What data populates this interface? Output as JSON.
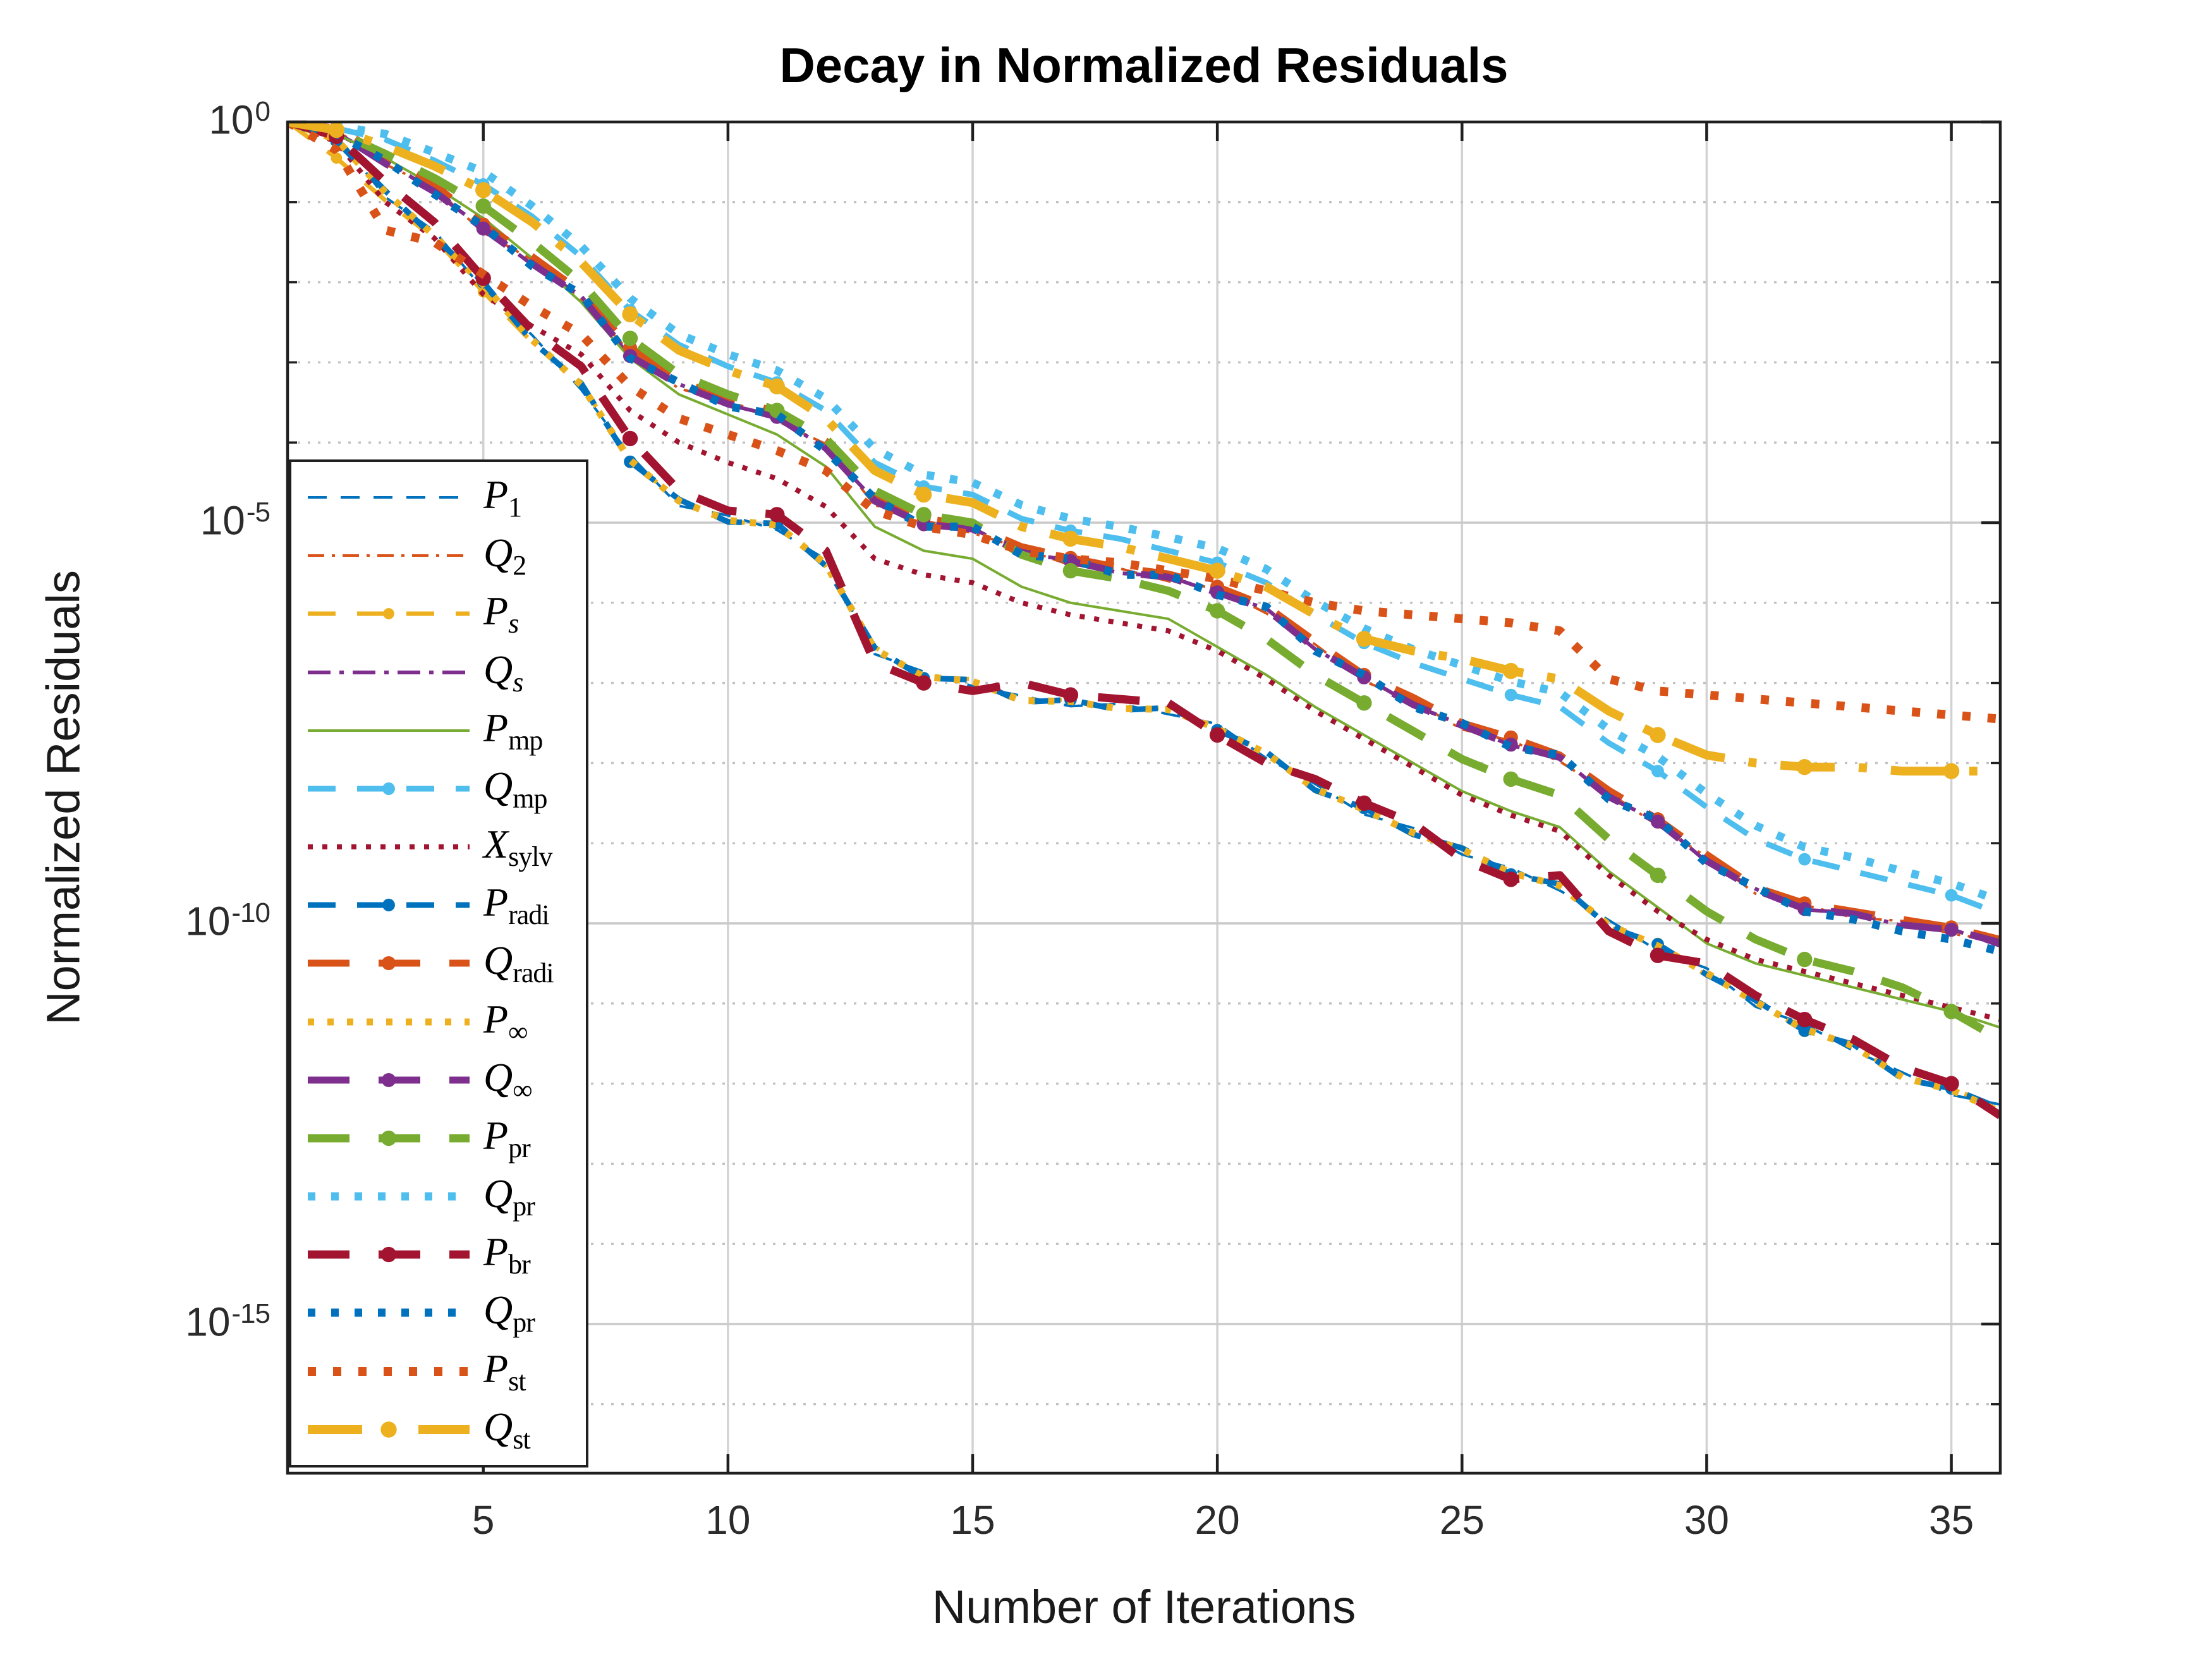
{
  "chart_data": {
    "type": "line",
    "title": "Decay in Normalized Residuals",
    "xlabel": "Number of Iterations",
    "ylabel": "Normalized Residuals",
    "grid": "on",
    "legend_position": "inside-lower-left",
    "x_axis": {
      "min": 1,
      "max": 36,
      "major_ticks": [
        5,
        10,
        15,
        20,
        25,
        30,
        35
      ],
      "tick_labels": [
        "5",
        "10",
        "15",
        "20",
        "25",
        "30",
        "35"
      ]
    },
    "y_axis": {
      "scale": "log10",
      "top_exponent": 0,
      "bottom_exponent": -16.86,
      "major_tick_exponents": [
        0,
        -5,
        -10,
        -15
      ],
      "major_tick_labels": [
        "10^0",
        "10^-5",
        "10^-10",
        "10^-15"
      ],
      "minor_grid_exponents": [
        -1,
        -2,
        -3,
        -4,
        -6,
        -7,
        -8,
        -9,
        -11,
        -12,
        -13,
        -14,
        -16
      ]
    },
    "x": [
      1,
      2,
      3,
      4,
      5,
      6,
      7,
      8,
      9,
      10,
      11,
      12,
      13,
      14,
      15,
      16,
      17,
      18,
      19,
      20,
      21,
      22,
      23,
      24,
      25,
      26,
      27,
      28,
      29,
      30,
      31,
      32,
      33,
      34,
      35,
      36
    ],
    "series": [
      {
        "name": "P_1",
        "label_base": "P",
        "label_sub": "1",
        "sub_italic": false,
        "color": "#0072BD",
        "lw": 4,
        "style": "dashed-sm",
        "marker": false,
        "log10_values": [
          0,
          -0.16,
          -0.94,
          -1.36,
          -2.09,
          -2.66,
          -3.34,
          -4.16,
          -4.79,
          -4.91,
          -5.09,
          -5.46,
          -6.64,
          -6.86,
          -7.04,
          -7.16,
          -7.29,
          -7.26,
          -7.39,
          -7.51,
          -7.94,
          -8.26,
          -8.64,
          -8.81,
          -9.14,
          -9.31,
          -9.59,
          -9.96,
          -10.34,
          -10.56,
          -11.04,
          -11.26,
          -11.59,
          -11.86,
          -12.14,
          -12.26
        ]
      },
      {
        "name": "Q_2",
        "label_base": "Q",
        "label_sub": "2",
        "sub_italic": false,
        "color": "#D95319",
        "lw": 4,
        "style": "dashdot-sm",
        "marker": false,
        "log10_values": [
          0,
          -0.1,
          -0.53,
          -0.82,
          -1.38,
          -1.72,
          -2.23,
          -2.87,
          -3.33,
          -3.47,
          -3.73,
          -4.02,
          -4.78,
          -4.97,
          -5.13,
          -5.32,
          -5.53,
          -5.57,
          -5.73,
          -5.82,
          -6.13,
          -6.52,
          -6.98,
          -7.22,
          -7.58,
          -7.72,
          -7.98,
          -8.37,
          -8.78,
          -9.17,
          -9.63,
          -9.77,
          -9.93,
          -9.97,
          -10.13,
          -10.22
        ]
      },
      {
        "name": "P_s",
        "label_base": "P",
        "label_sub": "s",
        "sub_italic": true,
        "color": "#EDB120",
        "lw": 7,
        "style": "dashed-md",
        "marker": true,
        "log10_values": [
          0,
          -0.45,
          -0.98,
          -1.45,
          -2.12,
          -2.75,
          -3.25,
          -4.25,
          -4.7,
          -5.0,
          -5.0,
          -5.55,
          -6.55,
          -6.95,
          -6.95,
          -7.25,
          -7.2,
          -7.35,
          -7.3,
          -7.6,
          -7.85,
          -8.35,
          -8.55,
          -8.9,
          -9.05,
          -9.4,
          -9.5,
          -10.05,
          -10.25,
          -10.65,
          -10.95,
          -11.35,
          -11.5,
          -11.95,
          -12.05,
          -12.33
        ]
      },
      {
        "name": "Q_s",
        "label_base": "Q",
        "label_sub": "s",
        "sub_italic": true,
        "color": "#7E2F8E",
        "lw": 6,
        "style": "dashdot-md",
        "marker": false,
        "log10_values": [
          0,
          -0.14,
          -0.47,
          -0.88,
          -1.32,
          -1.78,
          -2.17,
          -2.93,
          -3.27,
          -3.53,
          -3.67,
          -4.08,
          -4.72,
          -5.03,
          -5.07,
          -5.38,
          -5.47,
          -5.63,
          -5.67,
          -5.88,
          -6.07,
          -6.58,
          -6.92,
          -7.28,
          -7.52,
          -7.78,
          -7.92,
          -8.43,
          -8.72,
          -9.23,
          -9.57,
          -9.83,
          -9.87,
          -10.03,
          -10.07,
          -10.28
        ]
      },
      {
        "name": "P_mp",
        "label_base": "P",
        "label_sub": "mp",
        "sub_italic": false,
        "color": "#77AC30",
        "lw": 4,
        "style": "solid",
        "marker": false,
        "log10_values": [
          0,
          -0.15,
          -0.45,
          -0.8,
          -1.2,
          -1.7,
          -2.25,
          -2.95,
          -3.4,
          -3.65,
          -3.9,
          -4.3,
          -5.05,
          -5.35,
          -5.45,
          -5.8,
          -6.0,
          -6.1,
          -6.2,
          -6.55,
          -6.9,
          -7.3,
          -7.65,
          -8.0,
          -8.35,
          -8.6,
          -8.8,
          -9.35,
          -9.8,
          -10.25,
          -10.5,
          -10.65,
          -10.8,
          -10.95,
          -11.1,
          -11.3
        ]
      },
      {
        "name": "Q_mp",
        "label_base": "Q",
        "label_sub": "mp",
        "sub_italic": false,
        "color": "#4DBEEE",
        "lw": 9,
        "style": "dashed-md",
        "marker": true,
        "log10_values": [
          0,
          -0.08,
          -0.22,
          -0.48,
          -0.78,
          -1.18,
          -1.68,
          -2.35,
          -2.78,
          -3.05,
          -3.25,
          -3.6,
          -4.25,
          -4.55,
          -4.65,
          -4.95,
          -5.1,
          -5.2,
          -5.35,
          -5.5,
          -5.75,
          -6.15,
          -6.5,
          -6.75,
          -6.95,
          -7.15,
          -7.3,
          -7.75,
          -8.1,
          -8.55,
          -8.95,
          -9.2,
          -9.35,
          -9.5,
          -9.65,
          -9.88
        ]
      },
      {
        "name": "X_sylv",
        "label_base": "X",
        "label_sub": "sylv",
        "sub_italic": false,
        "color": "#A2142F",
        "lw": 8,
        "style": "dotted",
        "marker": false,
        "log10_values": [
          0,
          -0.25,
          -1.0,
          -1.45,
          -2.15,
          -2.55,
          -2.9,
          -3.6,
          -4.0,
          -4.25,
          -4.45,
          -4.8,
          -5.45,
          -5.65,
          -5.75,
          -6.0,
          -6.15,
          -6.25,
          -6.35,
          -6.6,
          -6.95,
          -7.35,
          -7.7,
          -8.05,
          -8.4,
          -8.65,
          -8.85,
          -9.4,
          -9.85,
          -10.2,
          -10.45,
          -10.6,
          -10.75,
          -10.9,
          -11.05,
          -11.2
        ]
      },
      {
        "name": "P_radi",
        "label_base": "P",
        "label_sub": "radi",
        "sub_italic": false,
        "color": "#0072BD",
        "lw": 9,
        "style": "dashed-md",
        "marker": true,
        "log10_values": [
          0,
          -0.24,
          -0.86,
          -1.44,
          -2.0,
          -2.74,
          -3.26,
          -4.24,
          -4.71,
          -4.99,
          -5.01,
          -5.54,
          -6.56,
          -6.94,
          -6.96,
          -7.24,
          -7.21,
          -7.34,
          -7.31,
          -7.59,
          -7.86,
          -8.34,
          -8.56,
          -8.89,
          -9.06,
          -9.39,
          -9.51,
          -10.04,
          -10.26,
          -10.64,
          -10.96,
          -11.34,
          -11.51,
          -11.94,
          -12.06,
          -12.31
        ]
      },
      {
        "name": "Q_radi",
        "label_base": "Q",
        "label_sub": "radi",
        "sub_italic": false,
        "color": "#D95319",
        "lw": 11,
        "style": "dashed-lg",
        "marker": true,
        "log10_values": [
          0,
          -0.08,
          -0.42,
          -0.78,
          -1.28,
          -1.68,
          -2.12,
          -2.82,
          -3.24,
          -3.44,
          -3.62,
          -3.98,
          -4.68,
          -4.94,
          -5.04,
          -5.3,
          -5.44,
          -5.56,
          -5.64,
          -5.8,
          -6.04,
          -6.48,
          -6.9,
          -7.18,
          -7.5,
          -7.68,
          -7.9,
          -8.34,
          -8.7,
          -9.14,
          -9.55,
          -9.75,
          -9.85,
          -9.95,
          -10.05,
          -10.2
        ]
      },
      {
        "name": "P_inf",
        "label_base": "P",
        "label_sub": "∞",
        "sub_italic": false,
        "color": "#EDB120",
        "lw": 11,
        "style": "dotted",
        "marker": false,
        "log10_values": [
          0,
          -0.22,
          -0.88,
          -1.42,
          -2.03,
          -2.72,
          -3.28,
          -4.22,
          -4.73,
          -4.97,
          -5.03,
          -5.52,
          -6.58,
          -6.92,
          -6.98,
          -7.22,
          -7.23,
          -7.32,
          -7.33,
          -7.57,
          -7.88,
          -8.32,
          -8.58,
          -8.87,
          -9.08,
          -9.37,
          -9.53,
          -10.02,
          -10.28,
          -10.62,
          -10.98,
          -11.32,
          -11.53,
          -11.92,
          -12.08,
          -12.35
        ]
      },
      {
        "name": "Q_inf",
        "label_base": "Q",
        "label_sub": "∞",
        "sub_italic": false,
        "color": "#7E2F8E",
        "lw": 11,
        "style": "dashed-lg",
        "marker": true,
        "log10_values": [
          0,
          -0.13,
          -0.52,
          -0.87,
          -1.33,
          -1.77,
          -2.18,
          -2.92,
          -3.28,
          -3.52,
          -3.68,
          -4.07,
          -4.73,
          -5.02,
          -5.08,
          -5.37,
          -5.48,
          -5.62,
          -5.68,
          -5.87,
          -6.08,
          -6.57,
          -6.93,
          -7.27,
          -7.53,
          -7.77,
          -7.93,
          -8.42,
          -8.73,
          -9.22,
          -9.58,
          -9.82,
          -9.88,
          -10.02,
          -10.08,
          -10.24
        ]
      },
      {
        "name": "P_pr",
        "label_base": "P",
        "label_sub": "pr",
        "sub_italic": false,
        "color": "#77AC30",
        "lw": 13,
        "style": "dashed-lg",
        "marker": true,
        "log10_values": [
          0,
          -0.12,
          -0.4,
          -0.7,
          -1.05,
          -1.5,
          -2.0,
          -2.7,
          -3.15,
          -3.4,
          -3.6,
          -3.95,
          -4.6,
          -4.9,
          -5.0,
          -5.4,
          -5.6,
          -5.7,
          -5.85,
          -6.1,
          -6.45,
          -6.9,
          -7.25,
          -7.6,
          -7.95,
          -8.2,
          -8.4,
          -8.95,
          -9.4,
          -9.85,
          -10.2,
          -10.45,
          -10.6,
          -10.8,
          -11.1,
          -11.45
        ]
      },
      {
        "name": "Q_pr",
        "label_base": "Q",
        "label_sub": "pr",
        "sub_italic": false,
        "color": "#4DBEEE",
        "lw": 13,
        "style": "dotted",
        "marker": false,
        "log10_values": [
          0,
          -0.05,
          -0.15,
          -0.38,
          -0.62,
          -1.05,
          -1.55,
          -2.2,
          -2.65,
          -2.9,
          -3.1,
          -3.45,
          -4.08,
          -4.4,
          -4.5,
          -4.78,
          -4.95,
          -5.05,
          -5.18,
          -5.32,
          -5.58,
          -5.98,
          -6.32,
          -6.58,
          -6.78,
          -6.98,
          -7.12,
          -7.58,
          -7.92,
          -8.38,
          -8.78,
          -9.05,
          -9.18,
          -9.35,
          -9.5,
          -9.72
        ]
      },
      {
        "name": "P_br",
        "label_base": "P",
        "label_sub": "br",
        "sub_italic": false,
        "color": "#A2142F",
        "lw": 13,
        "style": "dashed-lg",
        "marker": true,
        "log10_values": [
          0,
          -0.18,
          -0.75,
          -1.25,
          -1.95,
          -2.6,
          -3.05,
          -3.95,
          -4.6,
          -4.85,
          -4.9,
          -5.35,
          -6.75,
          -7.0,
          -7.1,
          -7.0,
          -7.15,
          -7.2,
          -7.25,
          -7.65,
          -8.0,
          -8.2,
          -8.5,
          -8.75,
          -9.2,
          -9.45,
          -9.4,
          -10.1,
          -10.4,
          -10.5,
          -10.9,
          -11.2,
          -11.45,
          -11.8,
          -12.0,
          -12.4
        ]
      },
      {
        "name": "Q_pr_2",
        "label_base": "Q",
        "label_sub": "pr",
        "sub_italic": false,
        "color": "#0072BD",
        "lw": 13,
        "style": "dotted",
        "marker": false,
        "log10_values": [
          0,
          -0.15,
          -0.48,
          -0.9,
          -1.3,
          -1.8,
          -2.15,
          -2.95,
          -3.25,
          -3.55,
          -3.65,
          -4.1,
          -4.7,
          -5.05,
          -5.05,
          -5.4,
          -5.45,
          -5.65,
          -5.65,
          -5.9,
          -6.05,
          -6.6,
          -6.9,
          -7.3,
          -7.5,
          -7.8,
          -7.9,
          -8.45,
          -8.7,
          -9.25,
          -9.55,
          -9.85,
          -9.95,
          -10.1,
          -10.2,
          -10.35
        ]
      },
      {
        "name": "P_st",
        "label_base": "P",
        "label_sub": "st",
        "sub_italic": false,
        "color": "#D95319",
        "lw": 14,
        "style": "dotted",
        "marker": false,
        "log10_values": [
          0,
          -0.35,
          -1.35,
          -1.5,
          -1.9,
          -2.3,
          -2.65,
          -3.3,
          -3.7,
          -3.9,
          -4.1,
          -4.35,
          -4.85,
          -5.05,
          -5.15,
          -5.35,
          -5.45,
          -5.5,
          -5.6,
          -5.7,
          -5.85,
          -6.0,
          -6.1,
          -6.15,
          -6.2,
          -6.25,
          -6.35,
          -6.95,
          -7.1,
          -7.15,
          -7.2,
          -7.25,
          -7.3,
          -7.35,
          -7.4,
          -7.45
        ]
      },
      {
        "name": "Q_st",
        "label_base": "Q",
        "label_sub": "st",
        "sub_italic": false,
        "color": "#EDB120",
        "lw": 14,
        "style": "dashdot-lg",
        "marker": true,
        "log10_values": [
          0,
          -0.1,
          -0.3,
          -0.55,
          -0.85,
          -1.25,
          -1.75,
          -2.4,
          -2.85,
          -3.1,
          -3.3,
          -3.7,
          -4.35,
          -4.65,
          -4.75,
          -5.05,
          -5.2,
          -5.3,
          -5.45,
          -5.6,
          -5.8,
          -6.15,
          -6.45,
          -6.6,
          -6.7,
          -6.85,
          -6.95,
          -7.35,
          -7.65,
          -7.9,
          -8.0,
          -8.05,
          -8.05,
          -8.1,
          -8.1,
          -8.1
        ]
      }
    ]
  },
  "colors": {
    "background": "#ffffff",
    "axis": "#1f1f1f",
    "tick_text": "#2b2b2b",
    "grid_major": "#c9c9c9",
    "grid_minor": "#c2c2c2",
    "grid_vertical": "#d2d2d2",
    "palette": [
      "#0072BD",
      "#D95319",
      "#EDB120",
      "#7E2F8E",
      "#77AC30",
      "#4DBEEE",
      "#A2142F"
    ]
  }
}
